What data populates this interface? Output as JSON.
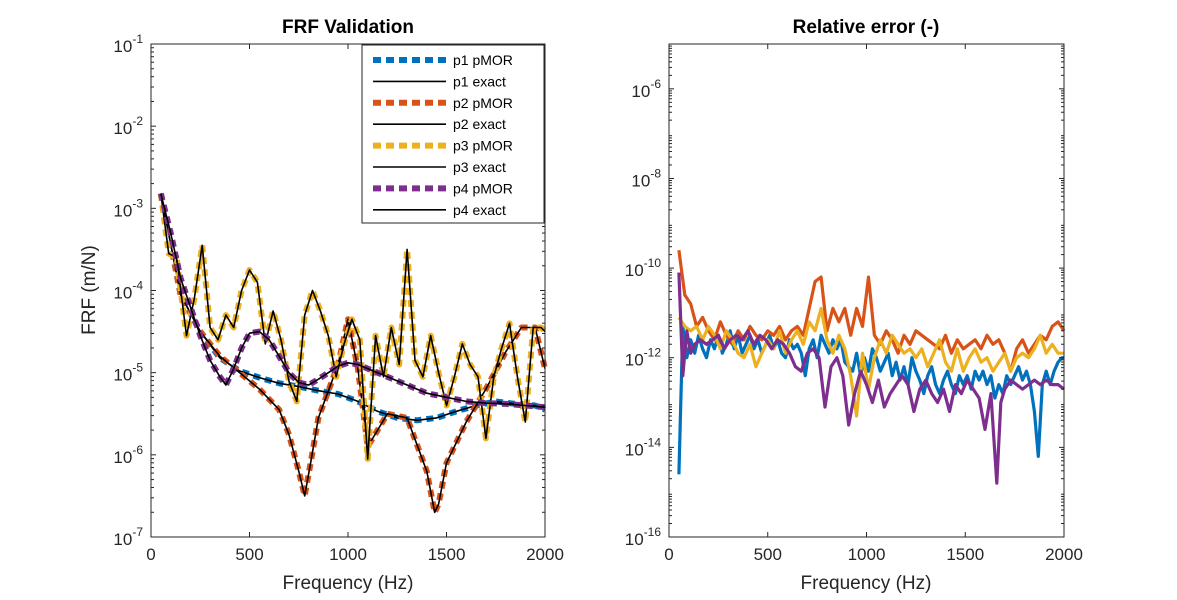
{
  "chart_data": [
    {
      "type": "line",
      "title": "FRF Validation",
      "xlabel": "Frequency (Hz)",
      "ylabel": "FRF (m/N)",
      "xlim": [
        0,
        2000
      ],
      "ylim_log10": [
        -7,
        -1
      ],
      "yscale": "log",
      "xticks": [
        "0",
        "500",
        "1000",
        "1500",
        "2000"
      ],
      "yticks": [
        {
          "base": "10",
          "exp": "-7"
        },
        {
          "base": "10",
          "exp": "-6"
        },
        {
          "base": "10",
          "exp": "-5"
        },
        {
          "base": "10",
          "exp": "-4"
        },
        {
          "base": "10",
          "exp": "-3"
        },
        {
          "base": "10",
          "exp": "-2"
        },
        {
          "base": "10",
          "exp": "-1"
        }
      ],
      "legend_position": "top-right",
      "legend": [
        "p1 pMOR",
        "p1 exact",
        "p2 pMOR",
        "p2 exact",
        "p3 pMOR",
        "p3 exact",
        "p4 pMOR",
        "p4 exact"
      ],
      "series": [
        {
          "name": "p1",
          "color": "#0072BD",
          "x": [
            50,
            150,
            250,
            350,
            450,
            550,
            650,
            750,
            850,
            950,
            1050,
            1150,
            1250,
            1350,
            1450,
            1550,
            1650,
            1750,
            1850,
            1950,
            2000
          ],
          "log10y": [
            -2.82,
            -4.05,
            -4.5,
            -4.82,
            -4.98,
            -5.06,
            -5.13,
            -5.17,
            -5.22,
            -5.26,
            -5.35,
            -5.47,
            -5.55,
            -5.58,
            -5.55,
            -5.47,
            -5.4,
            -5.35,
            -5.38,
            -5.4,
            -5.45
          ]
        },
        {
          "name": "p2",
          "color": "#D95319",
          "x": [
            50,
            150,
            250,
            350,
            450,
            550,
            650,
            700,
            750,
            780,
            810,
            850,
            950,
            1000,
            1050,
            1100,
            1200,
            1300,
            1400,
            1440,
            1460,
            1500,
            1600,
            1700,
            1800,
            1880,
            1950,
            2000
          ],
          "log10y": [
            -2.82,
            -4.05,
            -4.5,
            -4.8,
            -5.0,
            -5.2,
            -5.45,
            -5.75,
            -6.2,
            -6.5,
            -6.1,
            -5.55,
            -4.9,
            -4.35,
            -4.95,
            -5.9,
            -5.5,
            -5.55,
            -6.2,
            -6.7,
            -6.6,
            -6.1,
            -5.6,
            -5.2,
            -4.75,
            -4.45,
            -4.45,
            -4.95
          ]
        },
        {
          "name": "p3",
          "color": "#EDB120",
          "x": [
            50,
            90,
            130,
            180,
            220,
            260,
            300,
            340,
            380,
            420,
            460,
            500,
            540,
            580,
            620,
            660,
            700,
            740,
            780,
            820,
            860,
            900,
            940,
            980,
            1020,
            1060,
            1100,
            1140,
            1180,
            1220,
            1260,
            1300,
            1340,
            1380,
            1420,
            1460,
            1500,
            1540,
            1580,
            1620,
            1660,
            1700,
            1740,
            1780,
            1820,
            1860,
            1900,
            1940,
            1980,
            2000
          ],
          "log10y": [
            -2.82,
            -3.55,
            -3.6,
            -4.55,
            -4.1,
            -3.45,
            -4.45,
            -4.6,
            -4.3,
            -4.45,
            -4.0,
            -3.75,
            -3.9,
            -4.65,
            -4.25,
            -4.6,
            -5.1,
            -5.35,
            -4.3,
            -4.0,
            -4.25,
            -4.55,
            -5.05,
            -4.65,
            -4.35,
            -4.6,
            -6.05,
            -4.55,
            -5.05,
            -4.45,
            -4.9,
            -3.5,
            -4.85,
            -5.05,
            -4.55,
            -5.0,
            -5.4,
            -5.05,
            -4.65,
            -4.9,
            -5.05,
            -5.8,
            -5.05,
            -4.7,
            -4.4,
            -5.05,
            -5.6,
            -4.45,
            -4.45,
            -4.5
          ]
        },
        {
          "name": "p4",
          "color": "#7E2F8E",
          "x": [
            50,
            100,
            150,
            200,
            250,
            300,
            350,
            380,
            420,
            460,
            500,
            550,
            600,
            650,
            700,
            750,
            800,
            850,
            900,
            950,
            1000,
            1050,
            1100,
            1150,
            1200,
            1300,
            1400,
            1500,
            1600,
            1700,
            1800,
            1900,
            2000
          ],
          "log10y": [
            -2.82,
            -3.3,
            -3.85,
            -4.2,
            -4.55,
            -4.85,
            -5.05,
            -5.15,
            -4.95,
            -4.7,
            -4.52,
            -4.5,
            -4.6,
            -4.8,
            -5.0,
            -5.12,
            -5.15,
            -5.08,
            -5.0,
            -4.92,
            -4.88,
            -4.9,
            -4.95,
            -5.0,
            -5.05,
            -5.15,
            -5.25,
            -5.3,
            -5.35,
            -5.37,
            -5.38,
            -5.4,
            -5.42
          ]
        }
      ]
    },
    {
      "type": "line",
      "title": "Relative error (-)",
      "xlabel": "Frequency (Hz)",
      "ylabel": "",
      "xlim": [
        0,
        2000
      ],
      "ylim_log10": [
        -16,
        -5
      ],
      "yscale": "log",
      "xticks": [
        "0",
        "500",
        "1000",
        "1500",
        "2000"
      ],
      "yticks": [
        {
          "base": "10",
          "exp": "-16"
        },
        {
          "base": "10",
          "exp": "-14"
        },
        {
          "base": "10",
          "exp": "-12"
        },
        {
          "base": "10",
          "exp": "-10"
        },
        {
          "base": "10",
          "exp": "-8"
        },
        {
          "base": "10",
          "exp": "-6"
        }
      ],
      "series": [
        {
          "name": "p1",
          "color": "#0072BD",
          "x": [
            50,
            70,
            90,
            110,
            130,
            150,
            170,
            190,
            210,
            230,
            250,
            270,
            290,
            310,
            330,
            350,
            370,
            390,
            410,
            430,
            450,
            470,
            490,
            510,
            530,
            550,
            570,
            590,
            610,
            630,
            650,
            670,
            690,
            710,
            730,
            750,
            770,
            790,
            810,
            830,
            850,
            870,
            890,
            910,
            930,
            950,
            970,
            990,
            1010,
            1030,
            1050,
            1070,
            1090,
            1110,
            1130,
            1150,
            1170,
            1190,
            1210,
            1230,
            1250,
            1270,
            1290,
            1310,
            1330,
            1350,
            1370,
            1390,
            1410,
            1430,
            1450,
            1470,
            1490,
            1510,
            1530,
            1550,
            1570,
            1590,
            1610,
            1630,
            1650,
            1670,
            1690,
            1710,
            1730,
            1750,
            1770,
            1790,
            1810,
            1830,
            1850,
            1870,
            1890,
            1910,
            1930,
            1950,
            1970,
            1990,
            2000
          ],
          "log10y": [
            -14.6,
            -11.3,
            -12.0,
            -11.6,
            -11.9,
            -11.5,
            -11.8,
            -12.0,
            -11.6,
            -11.8,
            -11.5,
            -11.9,
            -11.7,
            -11.4,
            -11.8,
            -11.5,
            -11.9,
            -11.7,
            -11.5,
            -11.8,
            -11.6,
            -11.9,
            -11.7,
            -11.5,
            -11.8,
            -11.6,
            -11.9,
            -12.0,
            -11.6,
            -11.8,
            -11.7,
            -11.9,
            -12.4,
            -11.8,
            -11.6,
            -12.0,
            -11.5,
            -11.7,
            -11.9,
            -11.6,
            -11.8,
            -11.6,
            -12.1,
            -12.2,
            -12.3,
            -11.9,
            -12.4,
            -12.0,
            -12.3,
            -11.8,
            -12.0,
            -12.3,
            -12.1,
            -11.9,
            -12.4,
            -12.1,
            -12.5,
            -12.2,
            -12.6,
            -12.0,
            -12.3,
            -12.5,
            -12.8,
            -12.4,
            -12.2,
            -12.6,
            -12.8,
            -12.5,
            -12.3,
            -12.6,
            -12.8,
            -12.4,
            -12.6,
            -12.4,
            -12.7,
            -12.3,
            -12.5,
            -12.3,
            -12.6,
            -12.4,
            -12.9,
            -12.6,
            -12.8,
            -12.4,
            -12.6,
            -12.4,
            -12.2,
            -12.5,
            -12.3,
            -12.6,
            -13.2,
            -14.2,
            -12.6,
            -12.3,
            -12.6,
            -12.3,
            -12.1,
            -12.0,
            -12.0
          ],
          "series_style": "single"
        },
        {
          "name": "p2",
          "color": "#D95319",
          "x": [
            50,
            80,
            110,
            140,
            170,
            200,
            230,
            260,
            290,
            320,
            350,
            380,
            410,
            440,
            470,
            500,
            530,
            560,
            590,
            620,
            650,
            680,
            710,
            740,
            770,
            800,
            830,
            860,
            890,
            920,
            950,
            980,
            1010,
            1040,
            1070,
            1100,
            1130,
            1160,
            1190,
            1220,
            1250,
            1280,
            1310,
            1340,
            1370,
            1400,
            1430,
            1460,
            1490,
            1520,
            1550,
            1580,
            1610,
            1640,
            1670,
            1700,
            1730,
            1760,
            1790,
            1820,
            1850,
            1880,
            1910,
            1940,
            1970,
            2000
          ],
          "log10y": [
            -9.6,
            -10.6,
            -10.8,
            -11.3,
            -11.1,
            -11.4,
            -11.6,
            -11.2,
            -11.5,
            -11.7,
            -11.4,
            -11.6,
            -11.3,
            -11.5,
            -11.6,
            -11.4,
            -11.5,
            -11.3,
            -11.6,
            -11.4,
            -11.3,
            -11.5,
            -10.9,
            -10.3,
            -10.2,
            -11.4,
            -10.9,
            -11.2,
            -10.9,
            -11.5,
            -10.9,
            -11.3,
            -10.2,
            -11.5,
            -11.7,
            -11.4,
            -11.6,
            -11.9,
            -11.5,
            -11.7,
            -11.4,
            -11.5,
            -11.6,
            -11.7,
            -11.8,
            -11.5,
            -11.9,
            -11.6,
            -11.8,
            -11.7,
            -11.6,
            -11.8,
            -11.5,
            -11.7,
            -11.6,
            -11.9,
            -12.3,
            -11.8,
            -11.6,
            -11.9,
            -11.7,
            -11.5,
            -11.6,
            -11.3,
            -11.2,
            -11.4
          ],
          "series_style": "single"
        },
        {
          "name": "p3",
          "color": "#EDB120",
          "x": [
            50,
            80,
            110,
            140,
            170,
            200,
            230,
            260,
            290,
            320,
            350,
            380,
            410,
            440,
            470,
            500,
            530,
            560,
            590,
            620,
            650,
            680,
            710,
            740,
            770,
            800,
            830,
            860,
            890,
            920,
            950,
            980,
            1010,
            1040,
            1070,
            1100,
            1130,
            1160,
            1190,
            1220,
            1250,
            1280,
            1310,
            1340,
            1370,
            1400,
            1430,
            1460,
            1490,
            1520,
            1550,
            1580,
            1610,
            1640,
            1670,
            1700,
            1730,
            1760,
            1790,
            1820,
            1850,
            1880,
            1910,
            1940,
            1970,
            2000
          ],
          "log10y": [
            -11.1,
            -11.3,
            -11.4,
            -11.3,
            -11.6,
            -11.3,
            -11.5,
            -11.8,
            -11.4,
            -11.6,
            -11.9,
            -12.0,
            -11.7,
            -12.2,
            -11.9,
            -11.6,
            -11.8,
            -11.4,
            -11.9,
            -11.6,
            -11.4,
            -11.7,
            -11.2,
            -11.4,
            -10.9,
            -11.6,
            -11.9,
            -11.5,
            -11.8,
            -12.4,
            -13.3,
            -11.9,
            -12.7,
            -12.0,
            -11.6,
            -11.9,
            -11.5,
            -11.7,
            -11.9,
            -11.8,
            -12.0,
            -11.8,
            -12.2,
            -11.9,
            -11.6,
            -12.1,
            -12.3,
            -11.8,
            -12.3,
            -12.0,
            -11.8,
            -12.1,
            -12.0,
            -12.3,
            -12.1,
            -11.9,
            -12.3,
            -12.0,
            -11.9,
            -12.0,
            -11.8,
            -11.5,
            -11.9,
            -11.7,
            -11.9,
            -11.9
          ],
          "series_style": "single"
        },
        {
          "name": "p4",
          "color": "#7E2F8E",
          "x": [
            50,
            70,
            90,
            110,
            130,
            160,
            190,
            220,
            250,
            280,
            310,
            340,
            370,
            400,
            430,
            460,
            490,
            520,
            550,
            580,
            610,
            640,
            670,
            700,
            730,
            760,
            790,
            820,
            850,
            880,
            910,
            940,
            970,
            1000,
            1030,
            1060,
            1090,
            1120,
            1150,
            1180,
            1210,
            1240,
            1270,
            1300,
            1330,
            1360,
            1390,
            1420,
            1450,
            1480,
            1510,
            1540,
            1570,
            1600,
            1630,
            1660,
            1680,
            1700,
            1730,
            1760,
            1790,
            1820,
            1850,
            1880,
            1910,
            1940,
            1970,
            2000
          ],
          "log10y": [
            -10.1,
            -12.4,
            -11.4,
            -11.9,
            -11.7,
            -11.6,
            -11.7,
            -11.6,
            -11.5,
            -11.8,
            -11.6,
            -11.5,
            -11.6,
            -11.4,
            -11.7,
            -11.5,
            -11.6,
            -11.8,
            -11.6,
            -11.7,
            -11.9,
            -12.2,
            -12.3,
            -11.9,
            -11.8,
            -12.0,
            -13.1,
            -12.2,
            -12.0,
            -12.4,
            -13.5,
            -12.8,
            -12.3,
            -12.6,
            -13.0,
            -12.5,
            -13.1,
            -12.8,
            -12.6,
            -12.4,
            -12.6,
            -13.2,
            -12.7,
            -12.5,
            -12.8,
            -13.0,
            -12.7,
            -13.2,
            -12.6,
            -12.8,
            -12.5,
            -12.7,
            -12.9,
            -13.6,
            -12.8,
            -14.8,
            -13.0,
            -12.7,
            -12.5,
            -12.6,
            -12.7,
            -12.6,
            -12.5,
            -12.6,
            -12.5,
            -12.6,
            -12.6,
            -12.7
          ],
          "series_style": "single"
        }
      ]
    }
  ]
}
